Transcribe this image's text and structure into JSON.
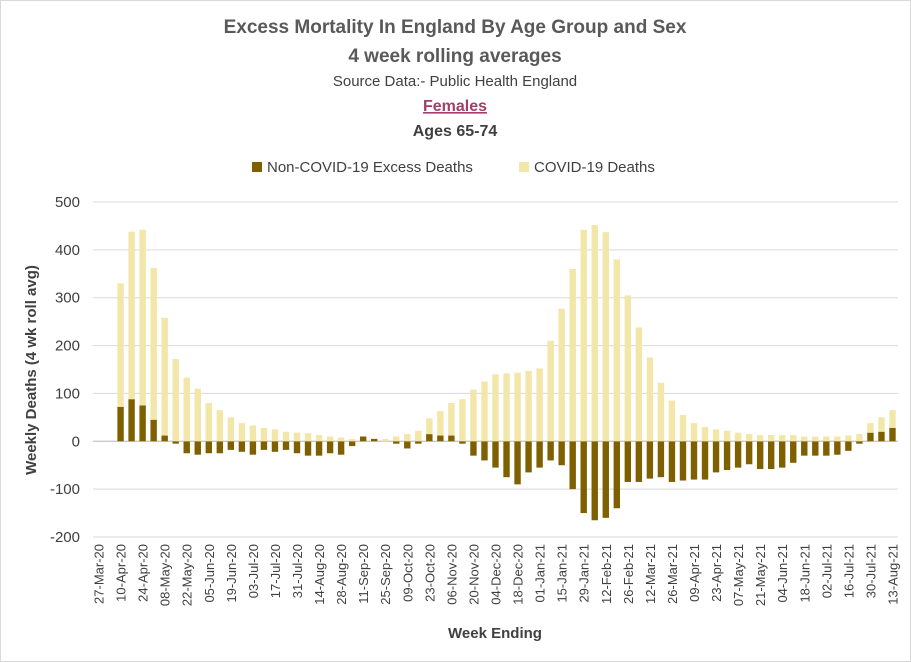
{
  "chart_data": {
    "type": "bar",
    "stacked": true,
    "title": "Excess Mortality In England By Age Group and Sex",
    "subtitle": "4 week rolling averages",
    "source": "Source Data:- Public Health England",
    "sex_label": "Females",
    "age_label": "Ages 65-74",
    "xlabel": "Week Ending",
    "ylabel": "Weekly Deaths (4 wk roll avg)",
    "ylim": [
      -200,
      500
    ],
    "yticks": [
      -200,
      -100,
      0,
      100,
      200,
      300,
      400,
      500
    ],
    "grid": true,
    "legend_position": "top",
    "colors": {
      "non_covid": "#7f6000",
      "covid": "#f2e6a8",
      "sex_label": "#a33e6a",
      "title": "#595959",
      "axis_text": "#404040"
    },
    "x": [
      "27-Mar-20",
      "03-Apr-20",
      "10-Apr-20",
      "17-Apr-20",
      "24-Apr-20",
      "01-May-20",
      "08-May-20",
      "15-May-20",
      "22-May-20",
      "29-May-20",
      "05-Jun-20",
      "12-Jun-20",
      "19-Jun-20",
      "26-Jun-20",
      "03-Jul-20",
      "10-Jul-20",
      "17-Jul-20",
      "24-Jul-20",
      "31-Jul-20",
      "07-Aug-20",
      "14-Aug-20",
      "21-Aug-20",
      "28-Aug-20",
      "04-Sep-20",
      "11-Sep-20",
      "18-Sep-20",
      "25-Sep-20",
      "02-Oct-20",
      "09-Oct-20",
      "16-Oct-20",
      "23-Oct-20",
      "30-Oct-20",
      "06-Nov-20",
      "13-Nov-20",
      "20-Nov-20",
      "27-Nov-20",
      "04-Dec-20",
      "11-Dec-20",
      "18-Dec-20",
      "25-Dec-20",
      "01-Jan-21",
      "08-Jan-21",
      "15-Jan-21",
      "22-Jan-21",
      "29-Jan-21",
      "05-Feb-21",
      "12-Feb-21",
      "19-Feb-21",
      "26-Feb-21",
      "05-Mar-21",
      "12-Mar-21",
      "19-Mar-21",
      "26-Mar-21",
      "02-Apr-21",
      "09-Apr-21",
      "16-Apr-21",
      "23-Apr-21",
      "30-Apr-21",
      "07-May-21",
      "14-May-21",
      "21-May-21",
      "28-May-21",
      "04-Jun-21",
      "11-Jun-21",
      "18-Jun-21",
      "25-Jun-21",
      "02-Jul-21",
      "09-Jul-21",
      "16-Jul-21",
      "23-Jul-21",
      "30-Jul-21",
      "06-Aug-21",
      "13-Aug-21"
    ],
    "xtick_labels": [
      "27-Mar-20",
      "10-Apr-20",
      "24-Apr-20",
      "08-May-20",
      "22-May-20",
      "05-Jun-20",
      "19-Jun-20",
      "03-Jul-20",
      "17-Jul-20",
      "31-Jul-20",
      "14-Aug-20",
      "28-Aug-20",
      "11-Sep-20",
      "25-Sep-20",
      "09-Oct-20",
      "23-Oct-20",
      "06-Nov-20",
      "20-Nov-20",
      "04-Dec-20",
      "18-Dec-20",
      "01-Jan-21",
      "15-Jan-21",
      "29-Jan-21",
      "12-Feb-21",
      "26-Feb-21",
      "12-Mar-21",
      "26-Mar-21",
      "09-Apr-21",
      "23-Apr-21",
      "07-May-21",
      "21-May-21",
      "04-Jun-21",
      "18-Jun-21",
      "02-Jul-21",
      "16-Jul-21",
      "30-Jul-21",
      "13-Aug-21"
    ],
    "series": [
      {
        "name": "Non-COVID-19 Excess Deaths",
        "values": [
          0,
          0,
          72,
          88,
          75,
          45,
          12,
          -5,
          -25,
          -28,
          -25,
          -25,
          -18,
          -22,
          -28,
          -18,
          -22,
          -18,
          -25,
          -30,
          -30,
          -25,
          -28,
          -10,
          10,
          5,
          0,
          -5,
          -15,
          -5,
          15,
          12,
          12,
          -5,
          -30,
          -40,
          -55,
          -75,
          -90,
          -65,
          -55,
          -40,
          -50,
          -100,
          -150,
          -165,
          -160,
          -140,
          -85,
          -85,
          -78,
          -75,
          -85,
          -82,
          -80,
          -80,
          -65,
          -60,
          -55,
          -48,
          -58,
          -58,
          -55,
          -45,
          -30,
          -30,
          -30,
          -28,
          -20,
          -5,
          18,
          20,
          28
        ],
        "stacked_tops": [
          0,
          0,
          330,
          438,
          442,
          362,
          258,
          172,
          133,
          110,
          80,
          65,
          50,
          38,
          33,
          28,
          25,
          20,
          18,
          17,
          13,
          10,
          8,
          5,
          5,
          5,
          5,
          10,
          15,
          22,
          48,
          63,
          80,
          88,
          108,
          125,
          140,
          142,
          143,
          147,
          152,
          210,
          277,
          360,
          442,
          452,
          437,
          380,
          305,
          238,
          175,
          122,
          85,
          55,
          38,
          30,
          25,
          22,
          18,
          15,
          13,
          13,
          13,
          13,
          10,
          10,
          10,
          10,
          12,
          15,
          38,
          50,
          65
        ]
      },
      {
        "name": "COVID-19 Deaths",
        "values": [
          0,
          0,
          258,
          350,
          367,
          317,
          246,
          172,
          133,
          110,
          80,
          65,
          50,
          38,
          33,
          28,
          25,
          20,
          18,
          17,
          13,
          10,
          8,
          5,
          0,
          0,
          5,
          10,
          15,
          22,
          33,
          51,
          68,
          88,
          108,
          125,
          140,
          142,
          143,
          147,
          152,
          210,
          277,
          360,
          442,
          452,
          437,
          380,
          305,
          238,
          175,
          122,
          85,
          55,
          38,
          30,
          25,
          22,
          18,
          15,
          13,
          13,
          13,
          13,
          10,
          10,
          10,
          10,
          12,
          15,
          20,
          30,
          37
        ]
      }
    ]
  }
}
